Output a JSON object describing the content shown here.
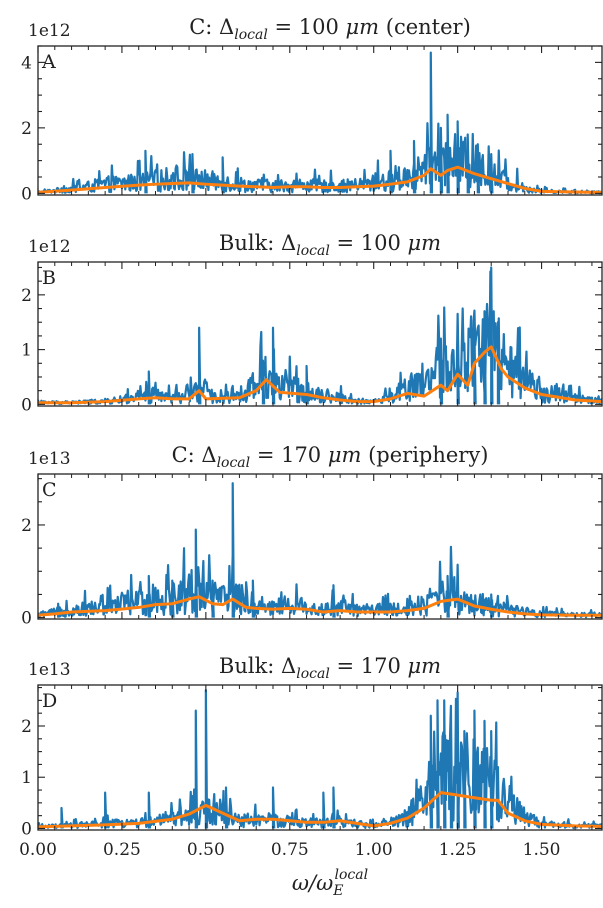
{
  "chart_data": [
    {
      "type": "line",
      "title": "C: Δ<local> = 100 μm (center)",
      "title_parts": {
        "prefix": "C: Δ",
        "sub": "local",
        "eq": " = 100 ",
        "unit": "μm",
        "suffix": " (center)"
      },
      "panel_label": "A",
      "multiplier": "1e12",
      "xlim": [
        0.0,
        1.68
      ],
      "ylim": [
        -0.05,
        4.5
      ],
      "yticks": [
        0,
        2,
        4
      ],
      "ytick_labels": [
        "0",
        "2",
        "4"
      ],
      "series": [
        {
          "role": "spectrum",
          "color": "#1f77b4",
          "x": [
            0.0,
            0.1,
            0.2,
            0.3,
            0.35,
            0.4,
            0.45,
            0.5,
            0.55,
            0.6,
            0.65,
            0.7,
            0.75,
            0.8,
            0.85,
            0.9,
            0.95,
            1.0,
            1.05,
            1.1,
            1.15,
            1.2,
            1.25,
            1.3,
            1.35,
            1.4,
            1.45,
            1.5,
            1.6,
            1.68
          ],
          "y": [
            0.03,
            0.12,
            0.25,
            0.3,
            0.35,
            0.4,
            0.38,
            0.35,
            0.3,
            0.25,
            0.22,
            0.2,
            0.22,
            0.22,
            0.2,
            0.2,
            0.22,
            0.28,
            0.35,
            0.45,
            0.6,
            0.85,
            0.9,
            0.75,
            0.5,
            0.3,
            0.15,
            0.06,
            0.04,
            0.03
          ],
          "spikes": [
            [
              0.32,
              1.3
            ],
            [
              0.46,
              1.2
            ],
            [
              0.55,
              1.1
            ],
            [
              1.05,
              1.3
            ],
            [
              1.12,
              1.6
            ],
            [
              1.17,
              4.3
            ],
            [
              1.2,
              2.0
            ],
            [
              1.22,
              2.4
            ],
            [
              1.25,
              2.2
            ],
            [
              1.28,
              1.8
            ],
            [
              1.31,
              1.5
            ],
            [
              1.35,
              1.2
            ]
          ]
        },
        {
          "role": "smoothed",
          "color": "#ff7f0e",
          "x": [
            0.0,
            0.1,
            0.2,
            0.3,
            0.35,
            0.4,
            0.45,
            0.5,
            0.55,
            0.6,
            0.65,
            0.7,
            0.75,
            0.8,
            0.85,
            0.9,
            0.95,
            1.0,
            1.05,
            1.1,
            1.15,
            1.17,
            1.2,
            1.22,
            1.25,
            1.3,
            1.35,
            1.4,
            1.45,
            1.5,
            1.6,
            1.68
          ],
          "y": [
            0.03,
            0.1,
            0.18,
            0.25,
            0.28,
            0.3,
            0.32,
            0.28,
            0.25,
            0.22,
            0.2,
            0.18,
            0.2,
            0.2,
            0.18,
            0.18,
            0.2,
            0.22,
            0.28,
            0.35,
            0.55,
            0.75,
            0.55,
            0.7,
            0.8,
            0.6,
            0.45,
            0.3,
            0.15,
            0.06,
            0.04,
            0.03
          ]
        }
      ]
    },
    {
      "type": "line",
      "title": "Bulk: Δ<local> = 100 μm",
      "title_parts": {
        "prefix": "Bulk: Δ",
        "sub": "local",
        "eq": " = 100 ",
        "unit": "μm",
        "suffix": ""
      },
      "panel_label": "B",
      "multiplier": "1e12",
      "xlim": [
        0.0,
        1.68
      ],
      "ylim": [
        -0.03,
        2.6
      ],
      "yticks": [
        0,
        1,
        2
      ],
      "ytick_labels": [
        "0",
        "1",
        "2"
      ],
      "series": [
        {
          "role": "spectrum",
          "color": "#1f77b4",
          "x": [
            0.0,
            0.1,
            0.2,
            0.3,
            0.35,
            0.4,
            0.45,
            0.48,
            0.52,
            0.6,
            0.65,
            0.68,
            0.72,
            0.8,
            0.85,
            0.9,
            0.95,
            1.0,
            1.05,
            1.1,
            1.15,
            1.2,
            1.25,
            1.3,
            1.33,
            1.35,
            1.38,
            1.4,
            1.45,
            1.5,
            1.6,
            1.68
          ],
          "y": [
            0.03,
            0.03,
            0.05,
            0.1,
            0.15,
            0.1,
            0.12,
            0.3,
            0.12,
            0.15,
            0.3,
            0.5,
            0.3,
            0.2,
            0.15,
            0.1,
            0.05,
            0.05,
            0.1,
            0.25,
            0.3,
            0.5,
            0.6,
            0.8,
            1.0,
            1.1,
            0.7,
            0.55,
            0.35,
            0.2,
            0.1,
            0.05
          ],
          "spikes": [
            [
              0.33,
              0.6
            ],
            [
              0.48,
              1.4
            ],
            [
              0.67,
              0.8
            ],
            [
              0.7,
              1.4
            ],
            [
              0.8,
              0.7
            ],
            [
              1.2,
              1.2
            ],
            [
              1.25,
              1.0
            ],
            [
              1.3,
              1.3
            ],
            [
              1.33,
              1.7
            ],
            [
              1.35,
              2.5
            ],
            [
              1.37,
              1.5
            ]
          ]
        },
        {
          "role": "smoothed",
          "color": "#ff7f0e",
          "x": [
            0.0,
            0.1,
            0.2,
            0.3,
            0.35,
            0.4,
            0.45,
            0.48,
            0.5,
            0.6,
            0.65,
            0.68,
            0.72,
            0.8,
            0.85,
            0.9,
            0.95,
            1.0,
            1.05,
            1.1,
            1.15,
            1.2,
            1.22,
            1.25,
            1.28,
            1.3,
            1.33,
            1.35,
            1.38,
            1.4,
            1.45,
            1.5,
            1.6,
            1.68
          ],
          "y": [
            0.03,
            0.03,
            0.05,
            0.1,
            0.12,
            0.1,
            0.1,
            0.25,
            0.1,
            0.12,
            0.25,
            0.45,
            0.22,
            0.18,
            0.12,
            0.08,
            0.05,
            0.05,
            0.1,
            0.2,
            0.15,
            0.35,
            0.25,
            0.55,
            0.35,
            0.75,
            0.95,
            1.05,
            0.65,
            0.5,
            0.3,
            0.18,
            0.08,
            0.05
          ]
        }
      ]
    },
    {
      "type": "line",
      "title": "C: Δ<local> = 170 μm (periphery)",
      "title_parts": {
        "prefix": "C: Δ",
        "sub": "local",
        "eq": " = 170 ",
        "unit": "μm",
        "suffix": " (periphery)"
      },
      "panel_label": "C",
      "multiplier": "1e13",
      "xlim": [
        0.0,
        1.68
      ],
      "ylim": [
        -0.03,
        3.1
      ],
      "yticks": [
        0,
        2
      ],
      "ytick_labels": [
        "0",
        "2"
      ],
      "series": [
        {
          "role": "spectrum",
          "color": "#1f77b4",
          "x": [
            0.0,
            0.05,
            0.1,
            0.2,
            0.3,
            0.35,
            0.4,
            0.45,
            0.48,
            0.52,
            0.55,
            0.58,
            0.62,
            0.65,
            0.7,
            0.75,
            0.8,
            0.85,
            0.9,
            0.95,
            1.0,
            1.05,
            1.1,
            1.15,
            1.2,
            1.22,
            1.25,
            1.3,
            1.35,
            1.4,
            1.45,
            1.5,
            1.6,
            1.68
          ],
          "y": [
            0.05,
            0.1,
            0.15,
            0.2,
            0.3,
            0.35,
            0.4,
            0.5,
            0.6,
            0.4,
            0.35,
            0.45,
            0.3,
            0.25,
            0.2,
            0.25,
            0.2,
            0.15,
            0.2,
            0.15,
            0.15,
            0.15,
            0.2,
            0.25,
            0.45,
            0.5,
            0.4,
            0.25,
            0.2,
            0.15,
            0.1,
            0.07,
            0.05,
            0.05
          ],
          "spikes": [
            [
              0.06,
              0.3
            ],
            [
              0.33,
              0.9
            ],
            [
              0.4,
              0.8
            ],
            [
              0.47,
              1.9
            ],
            [
              0.52,
              0.8
            ],
            [
              0.58,
              2.9
            ],
            [
              0.64,
              0.8
            ],
            [
              0.88,
              0.7
            ],
            [
              1.22,
              0.9
            ],
            [
              1.35,
              0.5
            ]
          ]
        },
        {
          "role": "smoothed",
          "color": "#ff7f0e",
          "x": [
            0.0,
            0.05,
            0.1,
            0.2,
            0.3,
            0.35,
            0.4,
            0.45,
            0.48,
            0.52,
            0.55,
            0.58,
            0.62,
            0.65,
            0.7,
            0.75,
            0.8,
            0.85,
            0.9,
            0.95,
            1.0,
            1.05,
            1.1,
            1.15,
            1.2,
            1.25,
            1.3,
            1.35,
            1.4,
            1.45,
            1.5,
            1.6,
            1.68
          ],
          "y": [
            0.05,
            0.08,
            0.12,
            0.15,
            0.22,
            0.28,
            0.3,
            0.4,
            0.45,
            0.3,
            0.28,
            0.4,
            0.22,
            0.2,
            0.18,
            0.2,
            0.18,
            0.12,
            0.15,
            0.12,
            0.12,
            0.12,
            0.15,
            0.2,
            0.35,
            0.4,
            0.25,
            0.18,
            0.12,
            0.08,
            0.06,
            0.05,
            0.05
          ]
        }
      ]
    },
    {
      "type": "line",
      "title": "Bulk: Δ<local> = 170 μm",
      "title_parts": {
        "prefix": "Bulk: Δ",
        "sub": "local",
        "eq": " = 170 ",
        "unit": "μm",
        "suffix": ""
      },
      "panel_label": "D",
      "multiplier": "1e13",
      "xlim": [
        0.0,
        1.68
      ],
      "ylim": [
        -0.03,
        2.8
      ],
      "yticks": [
        0,
        1,
        2
      ],
      "ytick_labels": [
        "0",
        "1",
        "2"
      ],
      "xticks": [
        0.0,
        0.25,
        0.5,
        0.75,
        1.0,
        1.25,
        1.5
      ],
      "xtick_labels": [
        "0.00",
        "0.25",
        "0.50",
        "0.75",
        "1.00",
        "1.25",
        "1.50"
      ],
      "xlabel_parts": {
        "main": "ω/ω",
        "sub": "E",
        "sup": "local"
      },
      "series": [
        {
          "role": "spectrum",
          "color": "#1f77b4",
          "x": [
            0.0,
            0.1,
            0.2,
            0.3,
            0.4,
            0.45,
            0.5,
            0.55,
            0.6,
            0.65,
            0.7,
            0.75,
            0.8,
            0.85,
            0.9,
            0.95,
            1.0,
            1.05,
            1.1,
            1.15,
            1.18,
            1.2,
            1.25,
            1.3,
            1.35,
            1.37,
            1.4,
            1.45,
            1.5,
            1.6,
            1.68
          ],
          "y": [
            0.03,
            0.05,
            0.08,
            0.1,
            0.15,
            0.2,
            0.3,
            0.25,
            0.15,
            0.15,
            0.15,
            0.12,
            0.1,
            0.1,
            0.12,
            0.08,
            0.05,
            0.1,
            0.2,
            0.5,
            0.8,
            1.0,
            0.9,
            0.9,
            0.8,
            0.6,
            0.4,
            0.2,
            0.08,
            0.05,
            0.04
          ],
          "spikes": [
            [
              0.07,
              0.4
            ],
            [
              0.2,
              0.7
            ],
            [
              0.33,
              0.7
            ],
            [
              0.47,
              2.3
            ],
            [
              0.5,
              2.7
            ],
            [
              0.56,
              0.8
            ],
            [
              0.7,
              0.8
            ],
            [
              0.85,
              0.7
            ],
            [
              0.88,
              0.8
            ],
            [
              1.17,
              2.2
            ],
            [
              1.19,
              2.5
            ],
            [
              1.21,
              2.5
            ],
            [
              1.23,
              2.3
            ],
            [
              1.25,
              2.1
            ],
            [
              1.27,
              1.9
            ],
            [
              1.3,
              2.3
            ],
            [
              1.33,
              2.1
            ],
            [
              1.35,
              1.9
            ]
          ]
        },
        {
          "role": "smoothed",
          "color": "#ff7f0e",
          "x": [
            0.0,
            0.1,
            0.2,
            0.3,
            0.4,
            0.45,
            0.5,
            0.55,
            0.6,
            0.65,
            0.7,
            0.75,
            0.8,
            0.85,
            0.9,
            0.95,
            1.0,
            1.05,
            1.1,
            1.15,
            1.2,
            1.25,
            1.3,
            1.35,
            1.37,
            1.4,
            1.45,
            1.5,
            1.6,
            1.68
          ],
          "y": [
            0.03,
            0.05,
            0.07,
            0.1,
            0.18,
            0.28,
            0.45,
            0.3,
            0.15,
            0.18,
            0.18,
            0.15,
            0.12,
            0.12,
            0.15,
            0.1,
            0.05,
            0.1,
            0.2,
            0.4,
            0.7,
            0.65,
            0.6,
            0.55,
            0.55,
            0.3,
            0.15,
            0.08,
            0.05,
            0.04
          ]
        }
      ]
    }
  ]
}
